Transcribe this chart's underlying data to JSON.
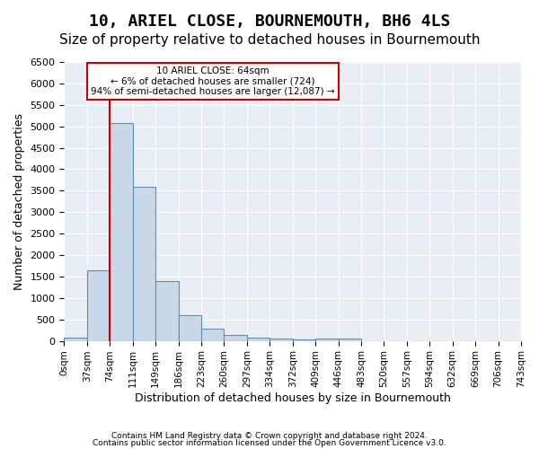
{
  "title": "10, ARIEL CLOSE, BOURNEMOUTH, BH6 4LS",
  "subtitle": "Size of property relative to detached houses in Bournemouth",
  "xlabel": "Distribution of detached houses by size in Bournemouth",
  "ylabel": "Number of detached properties",
  "bar_color": "#c8d8e8",
  "bar_edge_color": "#5b8db8",
  "bins": [
    "0sqm",
    "37sqm",
    "74sqm",
    "111sqm",
    "149sqm",
    "186sqm",
    "223sqm",
    "260sqm",
    "297sqm",
    "334sqm",
    "372sqm",
    "409sqm",
    "446sqm",
    "483sqm",
    "520sqm",
    "557sqm",
    "594sqm",
    "632sqm",
    "669sqm",
    "706sqm",
    "743sqm"
  ],
  "values": [
    75,
    1650,
    5080,
    3600,
    1400,
    600,
    280,
    140,
    80,
    55,
    30,
    50,
    50,
    0,
    0,
    0,
    0,
    0,
    0,
    0
  ],
  "property_line_x": 2,
  "property_line_color": "#cc0000",
  "ylim": [
    0,
    6500
  ],
  "yticks": [
    0,
    500,
    1000,
    1500,
    2000,
    2500,
    3000,
    3500,
    4000,
    4500,
    5000,
    5500,
    6000,
    6500
  ],
  "annotation_text": "10 ARIEL CLOSE: 64sqm\n← 6% of detached houses are smaller (724)\n94% of semi-detached houses are larger (12,087) →",
  "annotation_box_color": "#cc0000",
  "bg_color": "#e8eef4",
  "footer1": "Contains HM Land Registry data © Crown copyright and database right 2024.",
  "footer2": "Contains public sector information licensed under the Open Government Licence v3.0.",
  "title_fontsize": 13,
  "subtitle_fontsize": 11
}
